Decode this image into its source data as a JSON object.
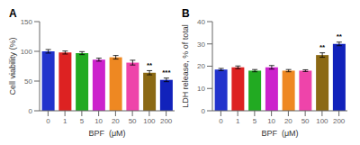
{
  "chart_data": [
    {
      "type": "bar",
      "title": "A",
      "categories": [
        "0",
        "1",
        "5",
        "10",
        "20",
        "50",
        "100",
        "200"
      ],
      "values": [
        100,
        98,
        97,
        86,
        90,
        81,
        64,
        52
      ],
      "errors": [
        3,
        2.5,
        2.5,
        2.5,
        3,
        4,
        3.5,
        3
      ],
      "colors": [
        "#2233CC",
        "#DD2222",
        "#22AA22",
        "#CC22CC",
        "#EE8822",
        "#EE44AA",
        "#8B6914",
        "#1122BB"
      ],
      "xlabel": "BPF  (μM)",
      "ylabel": "Cell viability (%)",
      "ylim": [
        0,
        150
      ],
      "yticks": [
        0,
        50,
        100,
        150
      ],
      "grid": false,
      "annotations": [
        {
          "x": "100",
          "text": "**"
        },
        {
          "x": "200",
          "text": "***"
        }
      ]
    },
    {
      "type": "bar",
      "title": "B",
      "categories": [
        "0",
        "1",
        "5",
        "10",
        "20",
        "50",
        "100",
        "200"
      ],
      "values": [
        18.5,
        19.5,
        18,
        19.5,
        18,
        18,
        25,
        30
      ],
      "errors": [
        0.5,
        0.6,
        0.5,
        0.8,
        0.5,
        0.4,
        1.0,
        0.8
      ],
      "colors": [
        "#2233CC",
        "#DD2222",
        "#22AA22",
        "#CC22CC",
        "#EE8822",
        "#EE44AA",
        "#8B6914",
        "#1122BB"
      ],
      "xlabel": "BPF  (μM)",
      "ylabel": "LDH release, % of total",
      "ylim": [
        0,
        40
      ],
      "yticks": [
        0,
        10,
        20,
        30,
        40
      ],
      "grid": false,
      "annotations": [
        {
          "x": "100",
          "text": "**"
        },
        {
          "x": "200",
          "text": "**"
        }
      ]
    }
  ]
}
